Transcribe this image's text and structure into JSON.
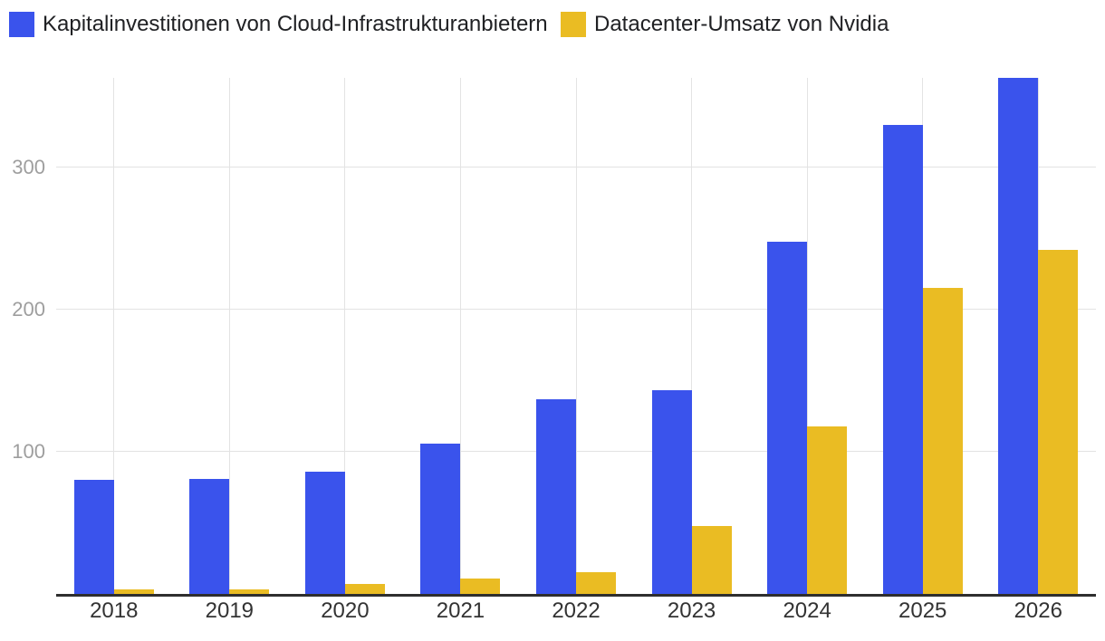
{
  "chart_data": {
    "type": "bar",
    "title": "",
    "categories": [
      "2018",
      "2019",
      "2020",
      "2021",
      "2022",
      "2023",
      "2024",
      "2025",
      "2026"
    ],
    "series": [
      {
        "name": "Kapitalinvestitionen von Cloud-Infrastrukturanbietern",
        "color": "#3a53ec",
        "values": [
          80,
          81,
          86,
          106,
          137,
          143,
          248,
          330,
          363
        ]
      },
      {
        "name": "Datacenter-Umsatz von Nvidia",
        "color": "#eabc23",
        "values": [
          3,
          3,
          7,
          11,
          15,
          48,
          118,
          215,
          242
        ]
      }
    ],
    "yticks": [
      100,
      200,
      300
    ],
    "ylim": [
      0,
      363
    ],
    "grid": true,
    "legend_position": "top-left",
    "xlabel": "",
    "ylabel": ""
  },
  "colors": {
    "background": "#ffffff",
    "gridline": "#e3e3e3",
    "axis_line": "#2e2e2e",
    "y_tick_label": "#9e9e9e",
    "x_tick_label": "#333333",
    "legend_text": "#202124"
  }
}
